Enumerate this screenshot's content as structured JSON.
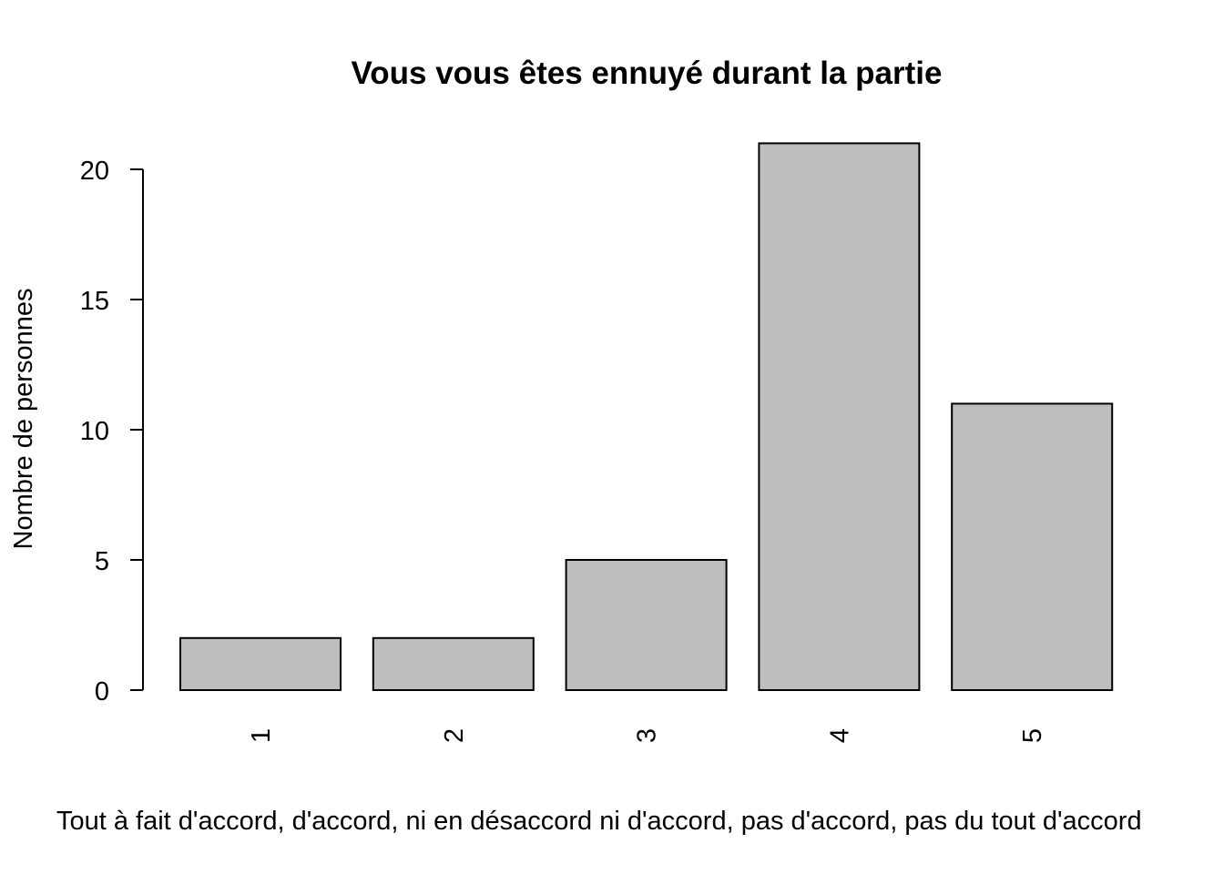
{
  "chart_data": {
    "type": "bar",
    "title": "Vous vous êtes ennuyé durant la partie",
    "xlabel": "Tout à fait d'accord, d'accord, ni en désaccord ni d'accord, pas d'accord, pas du tout d'accord",
    "ylabel": "Nombre de personnes",
    "categories": [
      "1",
      "2",
      "3",
      "4",
      "5"
    ],
    "values": [
      2,
      2,
      5,
      21,
      11
    ],
    "yticks": [
      0,
      5,
      10,
      15,
      20
    ],
    "ylim": [
      0,
      21
    ],
    "bar_color": "#bebebe",
    "grid": false,
    "legend": "none"
  }
}
